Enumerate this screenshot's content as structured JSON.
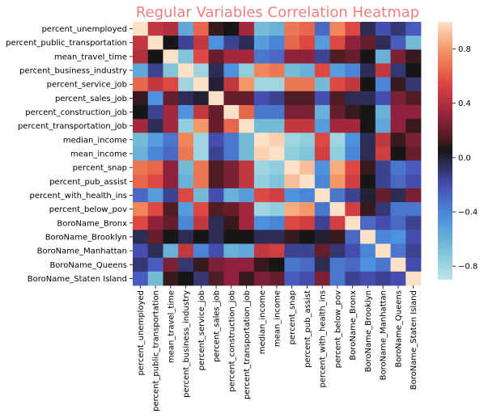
{
  "chart_data": {
    "type": "heatmap",
    "title": "Regular Variables Correlation Heatmap",
    "title_color": "#f08080",
    "variables": [
      "percent_unemployed",
      "percent_public_transportation",
      "mean_travel_time",
      "percent_business_industry",
      "percent_service_job",
      "percent_sales_job",
      "percent_construction_job",
      "percent_transportation_job",
      "median_income",
      "mean_income",
      "percent_snap",
      "percent_pub_assist",
      "percent_with_health_ins",
      "percent_below_pov",
      "BoroName_Bronx",
      "BoroName_Brooklyn",
      "BoroName_Manhattan",
      "BoroName_Queens",
      "BoroName_Staten Island"
    ],
    "matrix": [
      [
        1.0,
        0.45,
        0.4,
        -0.55,
        0.65,
        0.1,
        0.05,
        0.35,
        -0.65,
        -0.6,
        0.7,
        0.65,
        -0.3,
        0.75,
        0.55,
        -0.05,
        -0.2,
        -0.1,
        -0.25
      ],
      [
        0.45,
        1.0,
        0.05,
        -0.15,
        0.45,
        -0.45,
        -0.15,
        -0.05,
        -0.5,
        -0.4,
        0.65,
        0.55,
        -0.5,
        0.55,
        0.3,
        0.2,
        -0.05,
        -0.25,
        -0.65
      ],
      [
        0.4,
        0.05,
        1.0,
        -0.7,
        0.55,
        0.2,
        0.35,
        0.35,
        -0.35,
        -0.3,
        0.3,
        0.3,
        -0.15,
        0.15,
        0.2,
        0.05,
        -0.6,
        0.25,
        0.1
      ],
      [
        -0.55,
        -0.15,
        -0.7,
        1.0,
        -0.8,
        -0.05,
        -0.45,
        -0.75,
        0.75,
        0.7,
        -0.65,
        -0.6,
        0.55,
        -0.5,
        -0.4,
        -0.05,
        0.45,
        -0.1,
        0.05
      ],
      [
        0.65,
        0.45,
        0.55,
        -0.8,
        1.0,
        0.0,
        0.45,
        0.8,
        -0.8,
        -0.8,
        0.7,
        0.7,
        -0.65,
        0.55,
        0.45,
        0.05,
        -0.4,
        0.1,
        -0.1
      ],
      [
        0.1,
        -0.45,
        0.2,
        -0.05,
        0.0,
        1.0,
        0.2,
        0.2,
        -0.2,
        -0.15,
        0.15,
        0.15,
        -0.2,
        0.15,
        -0.05,
        -0.05,
        -0.2,
        0.25,
        0.15
      ],
      [
        0.05,
        -0.15,
        0.35,
        -0.45,
        0.45,
        0.2,
        1.0,
        0.65,
        -0.35,
        -0.35,
        0.25,
        0.25,
        -0.6,
        0.2,
        0.1,
        0.05,
        -0.6,
        0.3,
        0.3
      ],
      [
        0.35,
        -0.05,
        0.35,
        -0.75,
        0.8,
        0.2,
        0.65,
        1.0,
        -0.65,
        -0.65,
        0.45,
        0.45,
        -0.5,
        0.35,
        0.35,
        0.05,
        -0.55,
        0.3,
        0.1
      ],
      [
        -0.65,
        -0.5,
        -0.35,
        0.75,
        -0.8,
        -0.2,
        -0.35,
        -0.65,
        1.0,
        0.95,
        -0.8,
        -0.75,
        0.55,
        -0.8,
        -0.45,
        -0.05,
        0.45,
        0.1,
        0.25
      ],
      [
        -0.6,
        -0.4,
        -0.3,
        0.7,
        -0.8,
        -0.15,
        -0.35,
        -0.65,
        0.95,
        1.0,
        -0.75,
        -0.7,
        0.5,
        -0.75,
        -0.4,
        -0.05,
        0.5,
        0.05,
        0.2
      ],
      [
        0.7,
        0.65,
        0.3,
        -0.65,
        0.7,
        0.15,
        0.25,
        0.45,
        -0.8,
        -0.75,
        1.0,
        0.9,
        -0.45,
        0.85,
        0.55,
        0.1,
        -0.15,
        -0.35,
        -0.25
      ],
      [
        0.65,
        0.55,
        0.3,
        -0.6,
        0.7,
        0.15,
        0.25,
        0.45,
        -0.75,
        -0.7,
        0.9,
        1.0,
        -0.4,
        0.8,
        0.5,
        0.05,
        -0.15,
        -0.3,
        -0.2
      ],
      [
        -0.3,
        -0.5,
        -0.15,
        0.55,
        -0.65,
        -0.2,
        -0.6,
        -0.5,
        0.55,
        0.5,
        -0.45,
        -0.4,
        1.0,
        -0.35,
        -0.15,
        0.0,
        0.2,
        -0.05,
        0.25
      ],
      [
        0.75,
        0.55,
        0.15,
        -0.5,
        0.55,
        0.15,
        0.2,
        0.35,
        -0.8,
        -0.75,
        0.85,
        0.8,
        -0.35,
        1.0,
        0.5,
        0.1,
        -0.1,
        -0.35,
        -0.35
      ],
      [
        0.55,
        0.3,
        0.2,
        -0.4,
        0.45,
        -0.05,
        0.1,
        0.35,
        -0.45,
        -0.4,
        0.55,
        0.5,
        -0.15,
        0.5,
        1.0,
        -0.3,
        -0.2,
        -0.3,
        -0.15
      ],
      [
        -0.05,
        0.2,
        0.05,
        -0.05,
        0.05,
        -0.05,
        0.05,
        0.05,
        -0.05,
        -0.05,
        0.1,
        0.05,
        0.0,
        0.1,
        -0.3,
        1.0,
        -0.4,
        -0.45,
        -0.2
      ],
      [
        -0.2,
        -0.05,
        -0.6,
        0.45,
        -0.4,
        -0.2,
        -0.6,
        -0.55,
        0.45,
        0.5,
        -0.15,
        -0.15,
        0.2,
        -0.1,
        -0.2,
        -0.4,
        1.0,
        -0.35,
        -0.15
      ],
      [
        -0.1,
        -0.25,
        0.25,
        -0.1,
        0.1,
        0.25,
        0.3,
        0.3,
        0.1,
        0.05,
        -0.35,
        -0.3,
        -0.05,
        -0.35,
        -0.3,
        -0.45,
        -0.35,
        1.0,
        -0.2
      ],
      [
        -0.25,
        -0.65,
        0.1,
        0.05,
        -0.1,
        0.15,
        0.3,
        0.1,
        0.25,
        0.2,
        -0.25,
        -0.2,
        0.25,
        -0.35,
        -0.15,
        -0.2,
        -0.15,
        -0.2,
        1.0
      ]
    ],
    "vmin": -0.9,
    "vmax": 1.0,
    "colormap": "icefire (diverging)",
    "colorbar_ticks": [
      0.8,
      0.4,
      0.0,
      -0.4,
      -0.8
    ],
    "colorbar_tick_labels": [
      "0.8",
      "0.4",
      "0.0",
      "−0.4",
      "−0.8"
    ],
    "grid": false
  }
}
